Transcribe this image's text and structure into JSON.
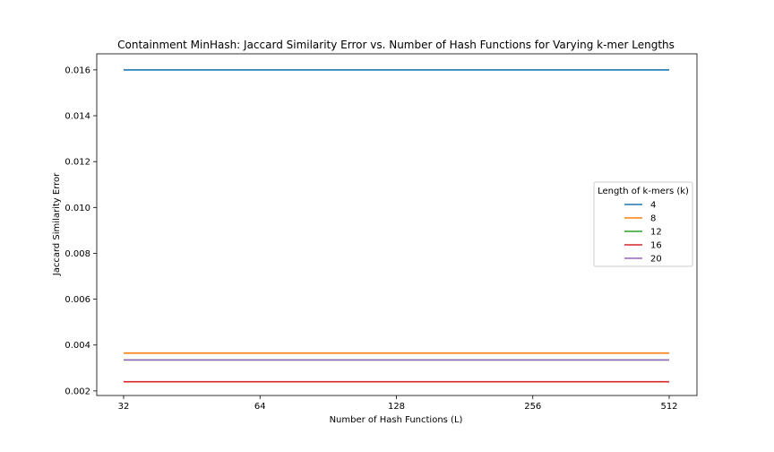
{
  "chart_data": {
    "type": "line",
    "title": "Containment MinHash: Jaccard Similarity Error vs. Number of Hash Functions for Varying k-mer Lengths",
    "xlabel": "Number of Hash Functions (L)",
    "ylabel": "Jaccard Similarity Error",
    "x_scale": "log2",
    "categories": [
      "32",
      "64",
      "128",
      "256",
      "512"
    ],
    "x": [
      32,
      64,
      128,
      256,
      512
    ],
    "ylim": [
      0.0018,
      0.0167
    ],
    "yticks": [
      0.002,
      0.004,
      0.006,
      0.008,
      0.01,
      0.012,
      0.014,
      0.016
    ],
    "ytick_labels": [
      "0.002",
      "0.004",
      "0.006",
      "0.008",
      "0.010",
      "0.012",
      "0.014",
      "0.016"
    ],
    "grid": false,
    "legend": {
      "title": "Length of k-mers (k)",
      "placement": "center-right"
    },
    "series": [
      {
        "name": "4",
        "color": "#1f77b4",
        "values": [
          0.016,
          0.016,
          0.016,
          0.016,
          0.016
        ]
      },
      {
        "name": "8",
        "color": "#ff7f0e",
        "values": [
          0.00365,
          0.00365,
          0.00365,
          0.00365,
          0.00365
        ]
      },
      {
        "name": "12",
        "color": "#2ca02c",
        "values": [
          0.00335,
          0.00335,
          0.00335,
          0.00335,
          0.00335
        ]
      },
      {
        "name": "16",
        "color": "#d62728",
        "values": [
          0.0024,
          0.0024,
          0.0024,
          0.0024,
          0.0024
        ]
      },
      {
        "name": "20",
        "color": "#9467bd",
        "values": [
          0.00335,
          0.00335,
          0.00335,
          0.00335,
          0.00335
        ]
      }
    ]
  }
}
